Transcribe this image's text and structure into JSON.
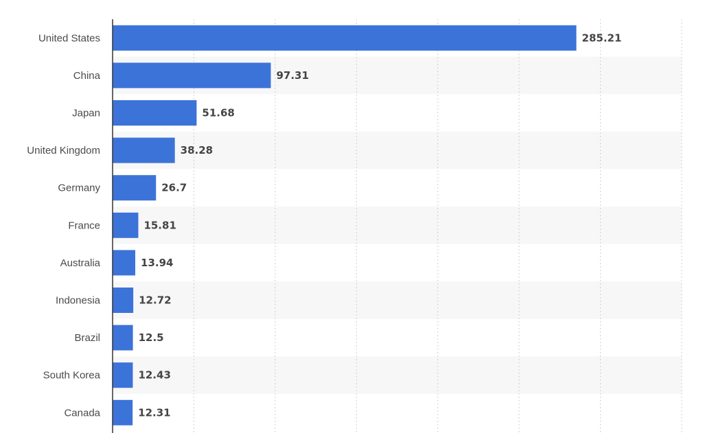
{
  "chart_data": {
    "type": "bar",
    "orientation": "horizontal",
    "categories": [
      "United States",
      "China",
      "Japan",
      "United Kingdom",
      "Germany",
      "France",
      "Australia",
      "Indonesia",
      "Brazil",
      "South Korea",
      "Canada"
    ],
    "values": [
      285.21,
      97.31,
      51.68,
      38.28,
      26.7,
      15.81,
      13.94,
      12.72,
      12.5,
      12.43,
      12.31
    ],
    "value_labels": [
      "285.21",
      "97.31",
      "51.68",
      "38.28",
      "26.7",
      "15.81",
      "13.94",
      "12.72",
      "12.5",
      "12.43",
      "12.31"
    ],
    "title": "",
    "xlabel": "",
    "ylabel": "",
    "xlim": [
      0,
      350
    ],
    "grid": true,
    "bar_color": "#3c73d8",
    "stripe_color": "#f7f7f7",
    "grid_color": "#d0d0d0"
  }
}
